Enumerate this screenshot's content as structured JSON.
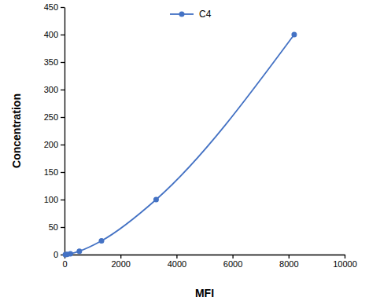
{
  "chart_data": {
    "type": "line",
    "x_label": "MFI",
    "y_label": "Concentration",
    "x": [
      30,
      90,
      210,
      530,
      1320,
      3270,
      8200
    ],
    "series": [
      {
        "name": "C4",
        "color": "#4472c4",
        "marker": "circle",
        "values": [
          0,
          0.39,
          1.56,
          6.25,
          25,
          100,
          400
        ]
      }
    ],
    "xlim": [
      0,
      10000
    ],
    "xticks": [
      0,
      2000,
      4000,
      6000,
      8000,
      10000
    ],
    "ylim": [
      0,
      450
    ],
    "yticks": [
      0,
      50,
      100,
      150,
      200,
      250,
      300,
      350,
      400,
      450
    ],
    "grid": false,
    "legend": "top"
  }
}
